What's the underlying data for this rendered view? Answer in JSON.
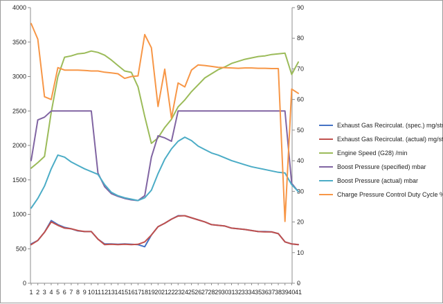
{
  "chart_data": {
    "type": "line",
    "title": "",
    "xlabel": "",
    "ylabel": "",
    "x": [
      1,
      2,
      3,
      4,
      5,
      6,
      7,
      8,
      9,
      10,
      11,
      12,
      13,
      14,
      15,
      16,
      17,
      18,
      19,
      20,
      21,
      22,
      23,
      24,
      25,
      26,
      27,
      28,
      29,
      30,
      31,
      32,
      33,
      34,
      35,
      36,
      37,
      38,
      39,
      40,
      41
    ],
    "x_tick_labels": [
      "1",
      "2",
      "3",
      "4",
      "5",
      "6",
      "7",
      "8",
      "9",
      "10",
      "11",
      "12",
      "13",
      "14",
      "15",
      "16",
      "17",
      "18",
      "19",
      "20",
      "21",
      "22",
      "23",
      "24",
      "25",
      "26",
      "27",
      "28",
      "29",
      "30",
      "31",
      "32",
      "33",
      "34",
      "35",
      "36",
      "37",
      "38",
      "39",
      "40",
      "41"
    ],
    "ylim_left": [
      0,
      4000
    ],
    "ylim_right": [
      0,
      90
    ],
    "left_ticks": [
      "0",
      "500",
      "1000",
      "1500",
      "2000",
      "2500",
      "3000",
      "3500",
      "4000"
    ],
    "right_ticks": [
      "0",
      "10",
      "20",
      "30",
      "40",
      "50",
      "60",
      "70",
      "80",
      "90"
    ],
    "grid": false,
    "legend_position": "right",
    "series": [
      {
        "name": "Exhaust Gas Recirculat. (spec.)  mg/str",
        "axis": "left",
        "color": "#4472c4",
        "values": [
          570,
          620,
          740,
          910,
          850,
          810,
          790,
          760,
          750,
          750,
          640,
          570,
          570,
          565,
          570,
          565,
          560,
          530,
          700,
          820,
          870,
          930,
          980,
          980,
          950,
          920,
          890,
          850,
          840,
          830,
          800,
          790,
          780,
          765,
          750,
          750,
          745,
          720,
          600,
          570,
          560
        ]
      },
      {
        "name": "Exhaust Gas Recirculat. (actual)  mg/str",
        "axis": "left",
        "color": "#c0504d",
        "values": [
          560,
          620,
          740,
          890,
          840,
          800,
          790,
          765,
          750,
          750,
          640,
          560,
          565,
          560,
          565,
          560,
          565,
          600,
          700,
          820,
          870,
          930,
          975,
          980,
          950,
          920,
          890,
          850,
          840,
          830,
          800,
          790,
          780,
          765,
          750,
          745,
          745,
          720,
          600,
          570,
          560
        ]
      },
      {
        "name": "Engine Speed (G28)  /min",
        "axis": "left",
        "color": "#9bbb59",
        "values": [
          1670,
          1750,
          1840,
          2480,
          3000,
          3280,
          3300,
          3330,
          3340,
          3370,
          3350,
          3310,
          3240,
          3160,
          3080,
          3060,
          2850,
          2420,
          2030,
          2110,
          2260,
          2380,
          2560,
          2660,
          2780,
          2880,
          2980,
          3040,
          3100,
          3140,
          3190,
          3220,
          3250,
          3270,
          3290,
          3300,
          3320,
          3330,
          3340,
          3030,
          3210
        ]
      },
      {
        "name": "Boost Pressure (specified)  mbar",
        "axis": "left",
        "color": "#8064a2",
        "values": [
          1780,
          2370,
          2410,
          2500,
          2500,
          2500,
          2500,
          2500,
          2500,
          2500,
          1600,
          1400,
          1300,
          1260,
          1230,
          1210,
          1200,
          1270,
          1830,
          2140,
          2110,
          2060,
          2500,
          2500,
          2500,
          2500,
          2500,
          2500,
          2500,
          2500,
          2500,
          2500,
          2500,
          2500,
          2500,
          2500,
          2500,
          2500,
          2500,
          1450,
          1330
        ]
      },
      {
        "name": "Boost Pressure (actual)  mbar",
        "axis": "left",
        "color": "#4bacc6",
        "values": [
          1090,
          1230,
          1410,
          1660,
          1860,
          1830,
          1760,
          1710,
          1660,
          1620,
          1580,
          1430,
          1320,
          1270,
          1240,
          1220,
          1200,
          1240,
          1350,
          1590,
          1800,
          1950,
          2060,
          2120,
          2070,
          1990,
          1940,
          1890,
          1860,
          1820,
          1780,
          1750,
          1720,
          1690,
          1670,
          1650,
          1630,
          1610,
          1600,
          1430,
          1330
        ]
      },
      {
        "name": "Charge Pressure Control Duty Cycle  %",
        "axis": "right",
        "color": "#f79646",
        "values": [
          84.8,
          79.7,
          60.9,
          60.0,
          70.4,
          69.6,
          69.6,
          69.6,
          69.5,
          69.3,
          69.3,
          68.9,
          68.7,
          68.4,
          66.9,
          67.5,
          67.7,
          81.2,
          76.9,
          57.7,
          69.9,
          53.9,
          65.4,
          64.1,
          69.6,
          71.3,
          71.1,
          70.8,
          70.5,
          70.4,
          70.3,
          70.2,
          70.3,
          70.3,
          70.2,
          70.2,
          70.1,
          70.1,
          20.2,
          63.4,
          62.0
        ]
      }
    ]
  }
}
